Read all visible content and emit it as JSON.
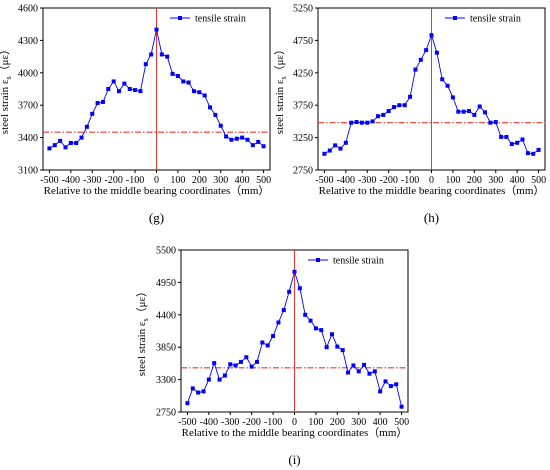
{
  "chart_data": [
    {
      "type": "line",
      "panel_label": "(g)",
      "xlabel": "Relative to the middle bearing coordinates（mm）",
      "ylabel": "steel strain",
      "ylabel_symbol": "ε",
      "ylabel_sub": "s",
      "ylabel_unit": "（με）",
      "xlim": [
        -530,
        530
      ],
      "ylim": [
        3100,
        4600
      ],
      "xticks": [
        -500,
        -400,
        -300,
        -200,
        -100,
        0,
        100,
        200,
        300,
        400,
        500
      ],
      "yticks": [
        3100,
        3400,
        3700,
        4000,
        4300,
        4600
      ],
      "grid": false,
      "legend": "top-right",
      "reference_line_y": 3450,
      "reference_line_x": 0,
      "series": [
        {
          "name": "tensile strain",
          "color": "#0000ff",
          "x": [
            -500,
            -475,
            -450,
            -425,
            -400,
            -375,
            -350,
            -325,
            -300,
            -275,
            -250,
            -225,
            -200,
            -175,
            -150,
            -125,
            -100,
            -75,
            -50,
            -25,
            0,
            25,
            50,
            75,
            100,
            125,
            150,
            175,
            200,
            225,
            250,
            275,
            300,
            325,
            350,
            375,
            400,
            425,
            450,
            475,
            500
          ],
          "y": [
            3300,
            3330,
            3370,
            3310,
            3350,
            3350,
            3400,
            3500,
            3620,
            3720,
            3730,
            3850,
            3920,
            3830,
            3900,
            3850,
            3840,
            3830,
            4080,
            4170,
            4400,
            4170,
            4150,
            3990,
            3970,
            3920,
            3910,
            3830,
            3820,
            3790,
            3680,
            3610,
            3510,
            3410,
            3380,
            3390,
            3400,
            3380,
            3330,
            3360,
            3320
          ]
        }
      ]
    },
    {
      "type": "line",
      "panel_label": "(h)",
      "xlabel": "Relative to the middle bearing coordinates（mm）",
      "ylabel": "steel strain",
      "ylabel_symbol": "ε",
      "ylabel_sub": "s",
      "ylabel_unit": "（με）",
      "xlim": [
        -530,
        530
      ],
      "ylim": [
        2750,
        5250
      ],
      "xticks": [
        -500,
        -400,
        -300,
        -200,
        -100,
        0,
        100,
        200,
        300,
        400,
        500
      ],
      "yticks": [
        2750,
        3250,
        3750,
        4250,
        4750,
        5250
      ],
      "grid": false,
      "legend": "top-right",
      "reference_line_y": 3480,
      "reference_line_x": 0,
      "series": [
        {
          "name": "tensile strain",
          "color": "#0000ff",
          "x": [
            -500,
            -475,
            -450,
            -425,
            -400,
            -375,
            -350,
            -325,
            -300,
            -275,
            -250,
            -225,
            -200,
            -175,
            -150,
            -125,
            -100,
            -75,
            -50,
            -25,
            0,
            25,
            50,
            75,
            100,
            125,
            150,
            175,
            200,
            225,
            250,
            275,
            300,
            325,
            350,
            375,
            400,
            425,
            450,
            475,
            500
          ],
          "y": [
            3000,
            3050,
            3130,
            3080,
            3170,
            3480,
            3490,
            3480,
            3480,
            3500,
            3580,
            3600,
            3660,
            3720,
            3750,
            3750,
            3880,
            4300,
            4450,
            4600,
            4830,
            4560,
            4150,
            4050,
            3870,
            3650,
            3650,
            3660,
            3600,
            3730,
            3640,
            3480,
            3490,
            3260,
            3260,
            3150,
            3170,
            3220,
            3010,
            3000,
            3060
          ]
        }
      ]
    },
    {
      "type": "line",
      "panel_label": "(i)",
      "xlabel": "Relative to the middle bearing coordinates（mm）",
      "ylabel": "steel strain",
      "ylabel_symbol": "ε",
      "ylabel_sub": "s",
      "ylabel_unit": "（με）",
      "xlim": [
        -530,
        530
      ],
      "ylim": [
        2750,
        5500
      ],
      "xticks": [
        -500,
        -400,
        -300,
        -200,
        -100,
        0,
        100,
        200,
        300,
        400,
        500
      ],
      "yticks": [
        2750,
        3300,
        3850,
        4400,
        4950,
        5500
      ],
      "grid": false,
      "legend": "top-right",
      "reference_line_y": 3500,
      "reference_line_x": 0,
      "series": [
        {
          "name": "tensile strain",
          "color": "#0000ff",
          "x": [
            -500,
            -475,
            -450,
            -425,
            -400,
            -375,
            -350,
            -325,
            -300,
            -275,
            -250,
            -225,
            -200,
            -175,
            -150,
            -125,
            -100,
            -75,
            -50,
            -25,
            0,
            25,
            50,
            75,
            100,
            125,
            150,
            175,
            200,
            225,
            250,
            275,
            300,
            325,
            350,
            375,
            400,
            425,
            450,
            475,
            500
          ],
          "y": [
            2900,
            3150,
            3080,
            3100,
            3300,
            3580,
            3300,
            3370,
            3560,
            3540,
            3600,
            3680,
            3520,
            3600,
            3930,
            3880,
            4040,
            4270,
            4480,
            4790,
            5130,
            4850,
            4400,
            4300,
            4170,
            4140,
            3850,
            4070,
            3860,
            3800,
            3420,
            3540,
            3440,
            3550,
            3400,
            3440,
            3100,
            3270,
            3190,
            3220,
            2840
          ]
        }
      ]
    }
  ]
}
